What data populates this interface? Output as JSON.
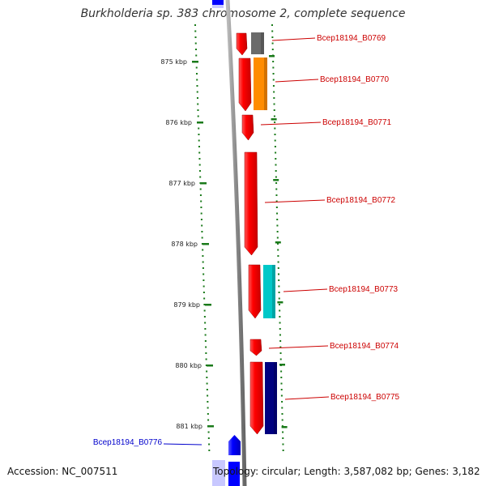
{
  "title": "Burkholderia sp. 383 chromosome 2, complete sequence",
  "footer": {
    "accession": "Accession: NC_007511",
    "summary": "Topology: circular; Length: 3,587,082 bp; Genes: 3,182"
  },
  "colors": {
    "backbone": "#888888",
    "tick": "#1a7a1a",
    "forward_strand_gene": "#ff0000",
    "label_forward": "#cc0000",
    "label_reverse": "#0000cc",
    "reverse_strand_gene": "#0000ff"
  },
  "scale_ticks": [
    {
      "label": "875 kbp"
    },
    {
      "label": "876 kbp"
    },
    {
      "label": "877 kbp"
    },
    {
      "label": "878 kbp"
    },
    {
      "label": "879 kbp"
    },
    {
      "label": "880 kbp"
    },
    {
      "label": "881 kbp"
    }
  ],
  "genes": [
    {
      "label": "Bcep18194_B0769",
      "strand": "forward",
      "feature_color": "#6b6b6b"
    },
    {
      "label": "Bcep18194_B0770",
      "strand": "forward",
      "feature_color": "#ff8c00"
    },
    {
      "label": "Bcep18194_B0771",
      "strand": "forward",
      "feature_color": null
    },
    {
      "label": "Bcep18194_B0772",
      "strand": "forward",
      "feature_color": null
    },
    {
      "label": "Bcep18194_B0773",
      "strand": "forward",
      "feature_color": "#00c8c8"
    },
    {
      "label": "Bcep18194_B0774",
      "strand": "forward",
      "feature_color": null
    },
    {
      "label": "Bcep18194_B0775",
      "strand": "forward",
      "feature_color": "#000080"
    },
    {
      "label": "Bcep18194_B0776",
      "strand": "reverse",
      "feature_color": null
    }
  ]
}
